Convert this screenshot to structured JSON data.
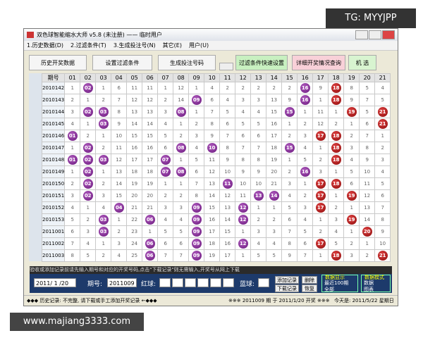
{
  "watermark_top": "TG: MYYJPP",
  "watermark_bottom": "www.majiang3333.com",
  "window": {
    "title": "双色球智能缩水大师 v5.8 (未注册) —— 临时用户"
  },
  "menu": [
    "1.历史数据(D)",
    "2.过滤条件(T)",
    "3.生成投注号(N)",
    "其它(E)",
    "用户(U)"
  ],
  "toolbar": [
    "历史开奖数据",
    "设置过滤条件",
    "生成投注号码",
    "过滤条件快速设置",
    "详细开奖情况查询",
    "机 选"
  ],
  "table": {
    "header": [
      "期号",
      "01",
      "02",
      "03",
      "04",
      "05",
      "06",
      "07",
      "08",
      "09",
      "10",
      "11",
      "12",
      "13",
      "14",
      "15",
      "16",
      "17",
      "18",
      "19",
      "20",
      "21"
    ],
    "rows": [
      [
        "2010142",
        "1",
        "02",
        "1",
        "6",
        "11",
        "11",
        "1",
        "12",
        "1",
        "4",
        "2",
        "2",
        "2",
        "2",
        "2",
        "16",
        "9",
        "18",
        "8",
        "5",
        "4"
      ],
      [
        "2010143",
        "2",
        "1",
        "2",
        "7",
        "12",
        "12",
        "2",
        "14",
        "09",
        "6",
        "4",
        "3",
        "3",
        "13",
        "9",
        "16",
        "1",
        "18",
        "9",
        "7",
        "5"
      ],
      [
        "2010144",
        "3",
        "02",
        "03",
        "8",
        "13",
        "13",
        "3",
        "08",
        "1",
        "7",
        "5",
        "4",
        "4",
        "15",
        "15",
        "1",
        "11",
        "1",
        "19",
        "5",
        "21"
      ],
      [
        "2010145",
        "4",
        "1",
        "03",
        "9",
        "14",
        "14",
        "4",
        "1",
        "2",
        "8",
        "6",
        "5",
        "5",
        "16",
        "1",
        "2",
        "12",
        "2",
        "1",
        "6",
        "21"
      ],
      [
        "2010146",
        "01",
        "2",
        "1",
        "10",
        "15",
        "15",
        "5",
        "2",
        "3",
        "9",
        "7",
        "6",
        "6",
        "17",
        "2",
        "3",
        "17",
        "18",
        "2",
        "7",
        "1"
      ],
      [
        "2010147",
        "1",
        "02",
        "2",
        "11",
        "16",
        "16",
        "6",
        "08",
        "4",
        "10",
        "8",
        "7",
        "7",
        "18",
        "15",
        "4",
        "1",
        "18",
        "3",
        "8",
        "2"
      ],
      [
        "2010148",
        "01",
        "02",
        "03",
        "12",
        "17",
        "17",
        "07",
        "1",
        "5",
        "11",
        "9",
        "8",
        "8",
        "19",
        "1",
        "5",
        "2",
        "18",
        "4",
        "9",
        "3"
      ],
      [
        "2010149",
        "1",
        "02",
        "1",
        "13",
        "18",
        "18",
        "07",
        "08",
        "6",
        "12",
        "10",
        "9",
        "9",
        "20",
        "2",
        "16",
        "3",
        "1",
        "5",
        "10",
        "4"
      ],
      [
        "2010150",
        "2",
        "02",
        "2",
        "14",
        "19",
        "19",
        "1",
        "1",
        "7",
        "13",
        "11",
        "10",
        "10",
        "21",
        "3",
        "1",
        "17",
        "18",
        "6",
        "11",
        "5"
      ],
      [
        "2010151",
        "3",
        "02",
        "3",
        "15",
        "20",
        "20",
        "2",
        "2",
        "8",
        "14",
        "12",
        "11",
        "13",
        "14",
        "4",
        "2",
        "17",
        "1",
        "19",
        "12",
        "6"
      ],
      [
        "2010152",
        "4",
        "1",
        "4",
        "04",
        "21",
        "21",
        "3",
        "3",
        "09",
        "15",
        "13",
        "12",
        "1",
        "1",
        "5",
        "3",
        "17",
        "2",
        "1",
        "13",
        "7"
      ],
      [
        "2010153",
        "5",
        "2",
        "03",
        "1",
        "22",
        "06",
        "4",
        "4",
        "09",
        "16",
        "14",
        "12",
        "2",
        "2",
        "6",
        "4",
        "1",
        "3",
        "19",
        "14",
        "8"
      ],
      [
        "2011001",
        "6",
        "3",
        "03",
        "2",
        "23",
        "1",
        "5",
        "5",
        "09",
        "17",
        "15",
        "1",
        "3",
        "3",
        "7",
        "5",
        "2",
        "4",
        "1",
        "20",
        "9"
      ],
      [
        "2011002",
        "7",
        "4",
        "1",
        "3",
        "24",
        "06",
        "6",
        "6",
        "09",
        "18",
        "16",
        "12",
        "4",
        "4",
        "8",
        "6",
        "17",
        "5",
        "2",
        "1",
        "10"
      ],
      [
        "2011003",
        "8",
        "5",
        "2",
        "4",
        "25",
        "06",
        "7",
        "7",
        "09",
        "19",
        "17",
        "1",
        "5",
        "5",
        "9",
        "7",
        "1",
        "18",
        "3",
        "2",
        "21"
      ]
    ]
  },
  "input_panel": {
    "hint": "验收或添加记录前请先输入期号和对应的开奖号码,点击\"下载记录\"则无需输入,开奖号从网上下载",
    "date": "2011/ 1 /20",
    "period_label": "期号:",
    "period": "2011009",
    "red_label": "红球:",
    "blue_label": "蓝球:",
    "buttons": [
      "添加记录",
      "下载记录",
      "删除",
      "恢复"
    ],
    "display_group": {
      "title": "数据显示",
      "options": [
        "最近100期",
        "全部"
      ]
    },
    "mode_group": {
      "title": "数据模式",
      "options": [
        "数据",
        "图表"
      ]
    }
  },
  "status": [
    "◆◆◆ 历史记录: 不完整, 请下载或手工添加开奖记录 ←◆◆◆",
    "※※※ 2011009 期 于 2011/1/20 开奖 ※※※",
    "今天是: 2011/5/22 星期日"
  ]
}
